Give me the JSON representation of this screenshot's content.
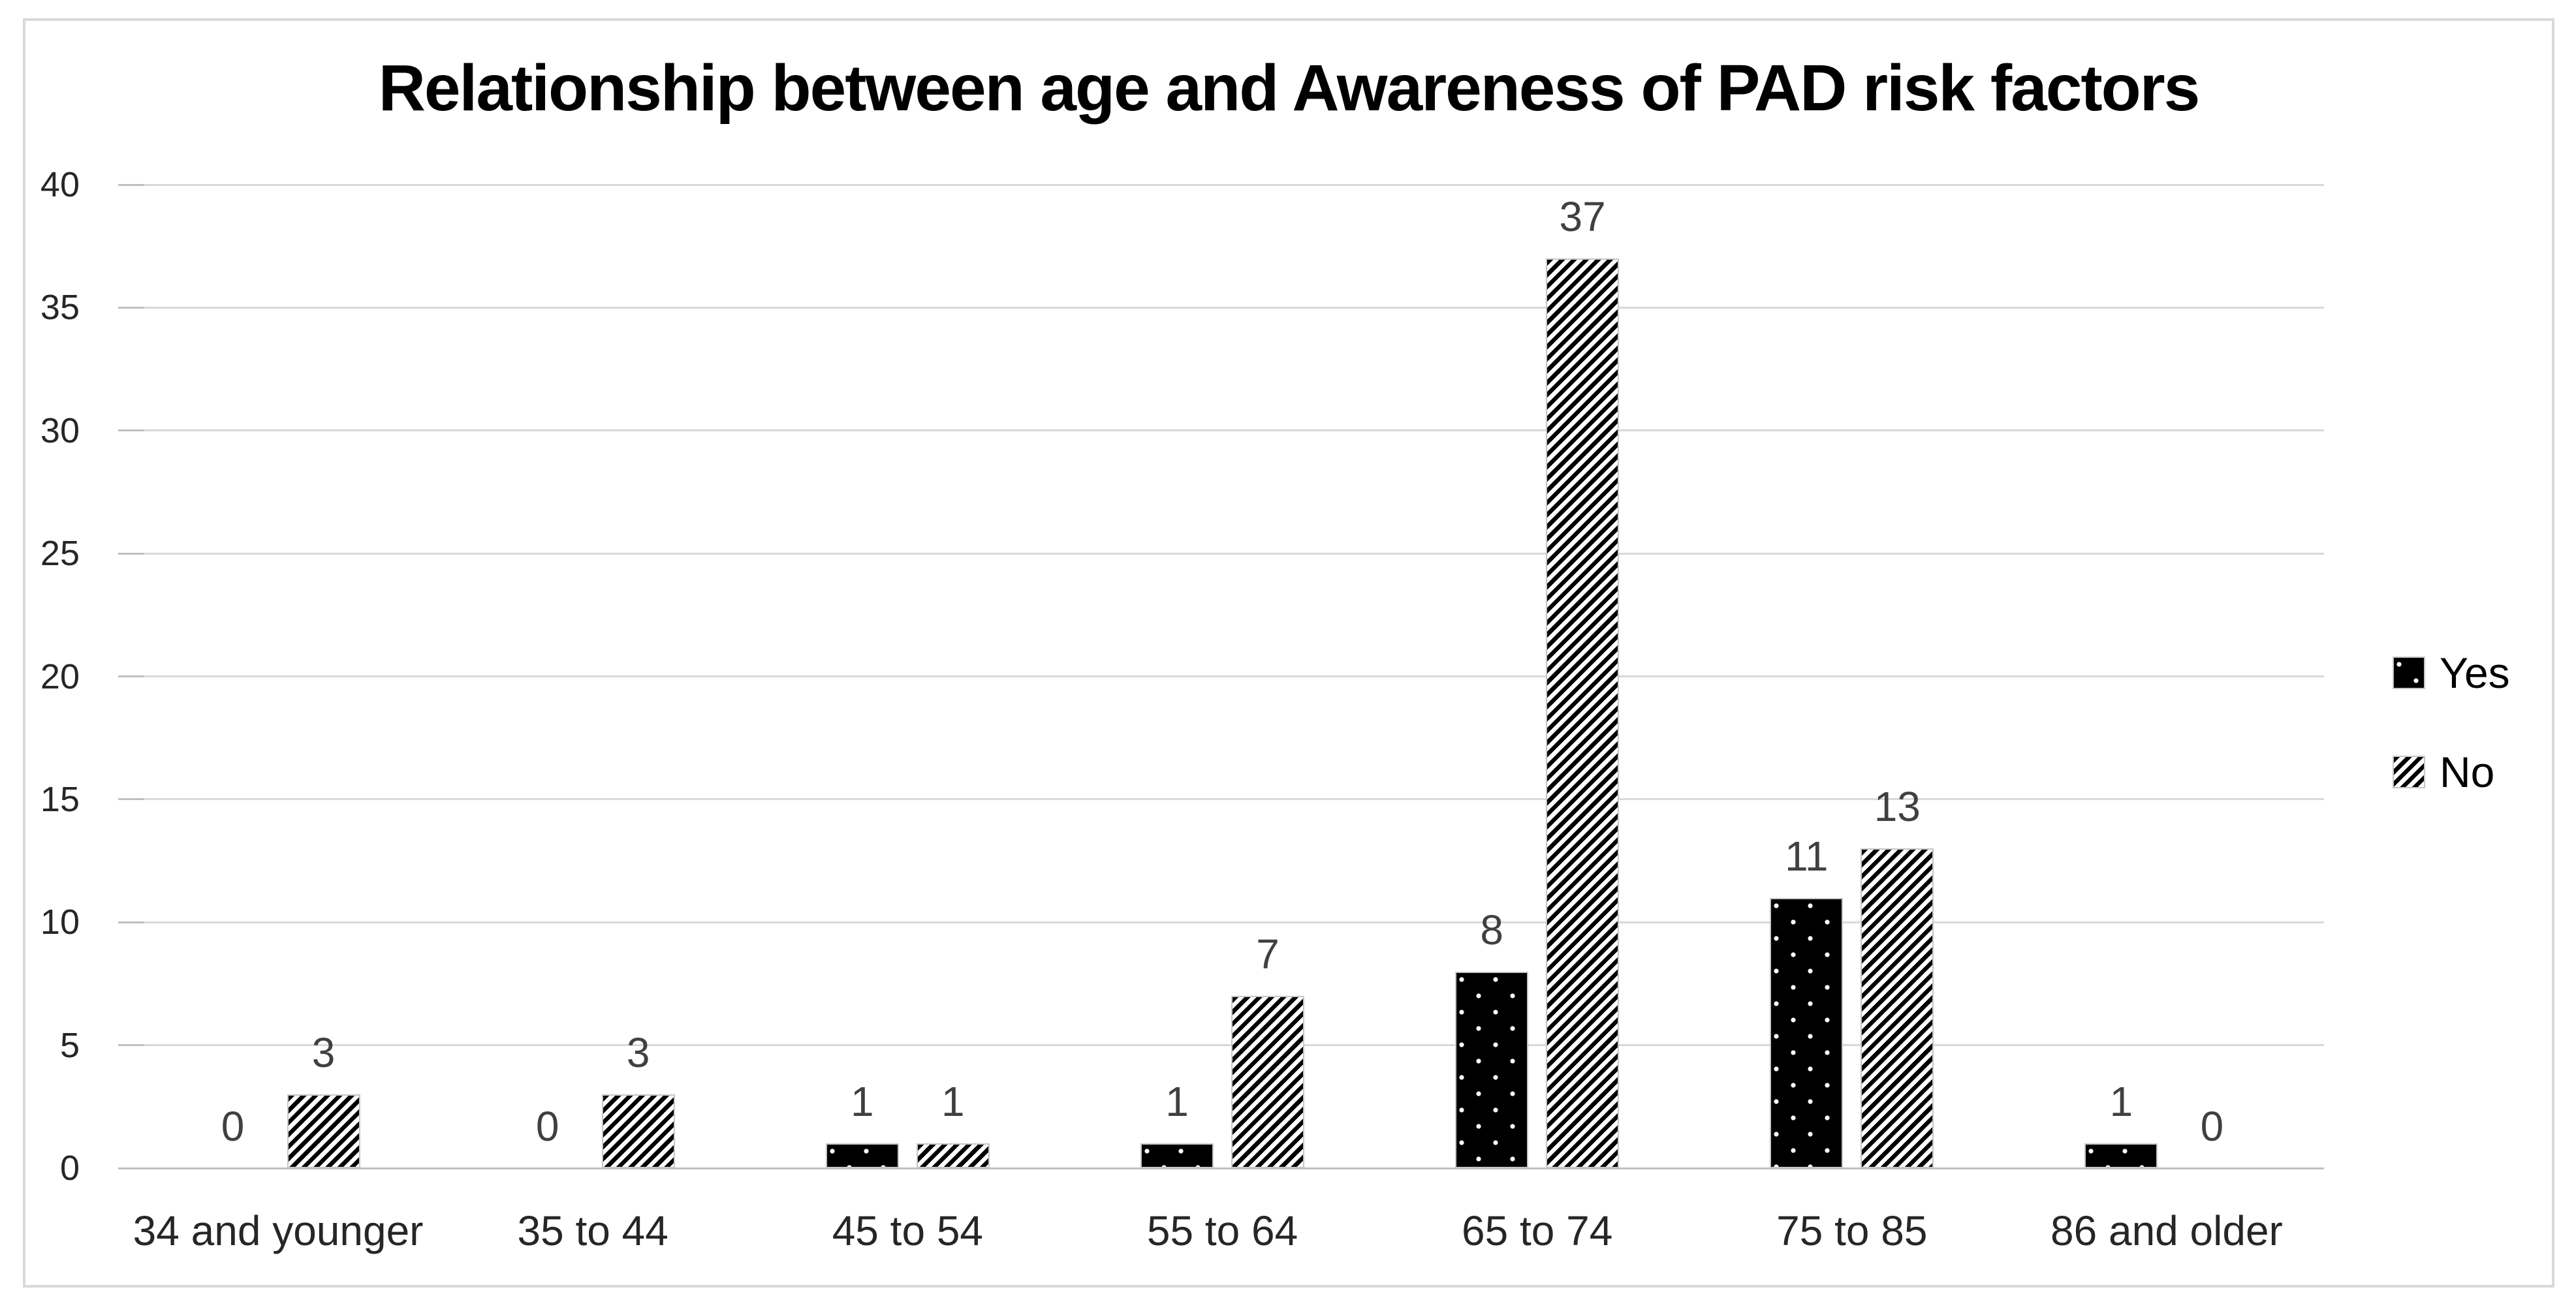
{
  "chart_data": {
    "type": "bar",
    "title": "Relationship between age and Awareness of PAD risk factors",
    "categories": [
      "34 and younger",
      "35 to 44",
      "45 to 54",
      "55 to 64",
      "65 to 74",
      "75 to 85",
      "86 and older"
    ],
    "series": [
      {
        "name": "Yes",
        "pattern": "white-dots-on-black",
        "values": [
          0,
          0,
          1,
          1,
          8,
          11,
          1
        ]
      },
      {
        "name": "No",
        "pattern": "black-diagonal-stripes",
        "values": [
          3,
          3,
          1,
          7,
          37,
          13,
          0
        ]
      }
    ],
    "y_axis": {
      "min": 0,
      "max": 40,
      "step": 5,
      "ticks": [
        0,
        5,
        10,
        15,
        20,
        25,
        30,
        35,
        40
      ]
    },
    "xlabel": "",
    "ylabel": "",
    "data_labels_shown": true,
    "grid": "horizontal",
    "legend_position": "right",
    "style": {
      "frame_border": "#D9D9D9",
      "gridline": "#D9D9D9",
      "axis_line": "#BFBFBF",
      "bar_border": "#C6C6C6",
      "series_fill": "#000000",
      "data_label_color": "#404040",
      "axis_label_color": "#262626",
      "background": "#FFFFFF"
    }
  }
}
